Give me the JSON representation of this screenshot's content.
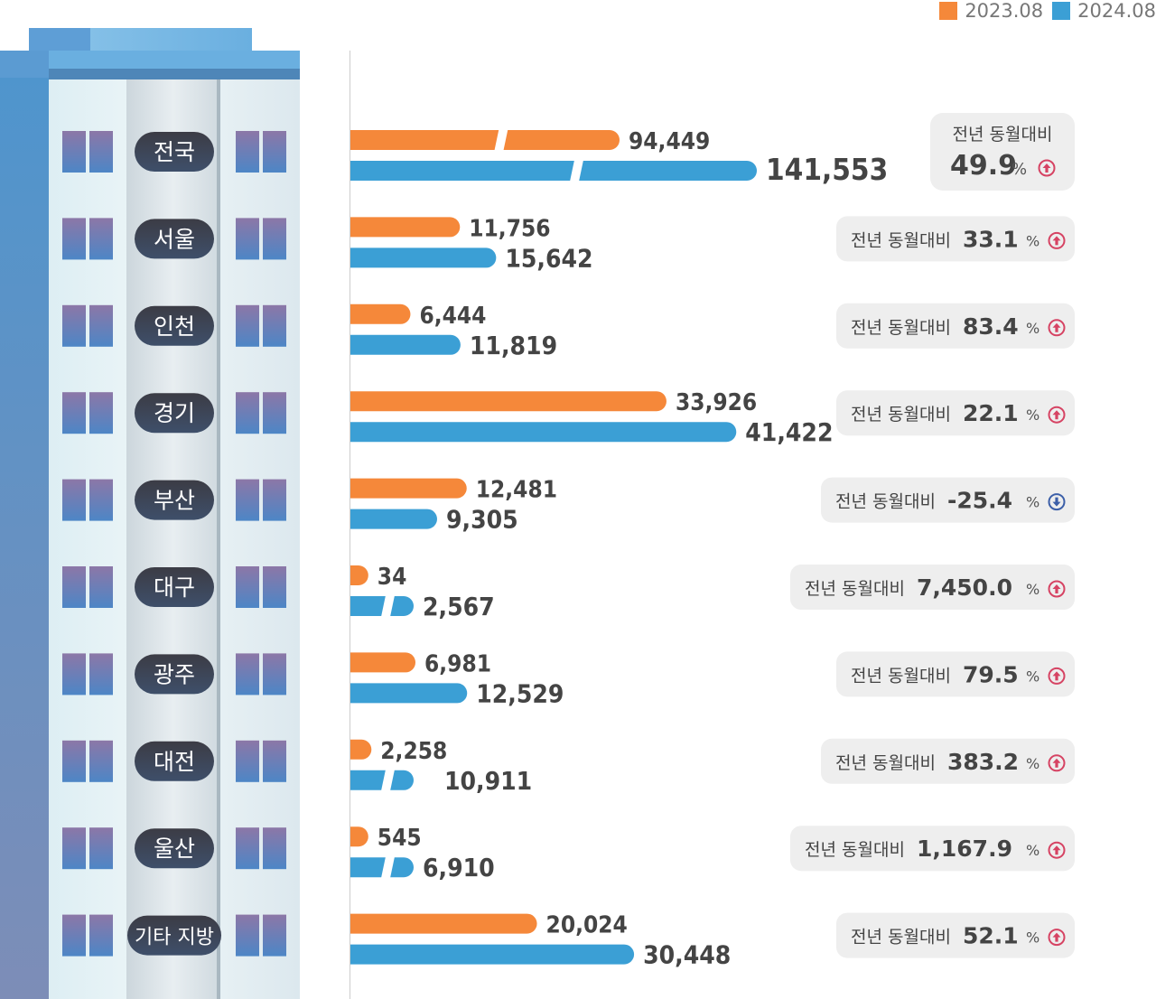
{
  "chart_data": {
    "type": "bar",
    "orientation": "horizontal",
    "legend_position": "top-right",
    "series": [
      {
        "name": "2023.08",
        "color": "#F5883A"
      },
      {
        "name": "2024.08",
        "color": "#3B9FD5"
      }
    ],
    "categories": [
      {
        "label": "전국",
        "v2023": 94449,
        "v2023_label": "94,449",
        "v2024": 141553,
        "v2024_label": "141,553",
        "yoy_prefix": "전년 동월대비",
        "yoy_value": "49.9",
        "yoy_unit": "%",
        "yoy_direction": "up"
      },
      {
        "label": "서울",
        "v2023": 11756,
        "v2023_label": "11,756",
        "v2024": 15642,
        "v2024_label": "15,642",
        "yoy_prefix": "전년 동월대비",
        "yoy_value": "33.1",
        "yoy_unit": "%",
        "yoy_direction": "up"
      },
      {
        "label": "인천",
        "v2023": 6444,
        "v2023_label": "6,444",
        "v2024": 11819,
        "v2024_label": "11,819",
        "yoy_prefix": "전년 동월대비",
        "yoy_value": "83.4",
        "yoy_unit": "%",
        "yoy_direction": "up"
      },
      {
        "label": "경기",
        "v2023": 33926,
        "v2023_label": "33,926",
        "v2024": 41422,
        "v2024_label": "41,422",
        "yoy_prefix": "전년 동월대비",
        "yoy_value": "22.1",
        "yoy_unit": "%",
        "yoy_direction": "up"
      },
      {
        "label": "부산",
        "v2023": 12481,
        "v2023_label": "12,481",
        "v2024": 9305,
        "v2024_label": "9,305",
        "yoy_prefix": "전년 동월대비",
        "yoy_value": "-25.4",
        "yoy_unit": "%",
        "yoy_direction": "down"
      },
      {
        "label": "대구",
        "v2023": 34,
        "v2023_label": "34",
        "v2024": 2567,
        "v2024_label": "2,567",
        "yoy_prefix": "전년 동월대비",
        "yoy_value": "7,450.0",
        "yoy_unit": "%",
        "yoy_direction": "up"
      },
      {
        "label": "광주",
        "v2023": 6981,
        "v2023_label": "6,981",
        "v2024": 12529,
        "v2024_label": "12,529",
        "yoy_prefix": "전년 동월대비",
        "yoy_value": "79.5",
        "yoy_unit": "%",
        "yoy_direction": "up"
      },
      {
        "label": "대전",
        "v2023": 2258,
        "v2023_label": "2,258",
        "v2024": 10911,
        "v2024_label": "10,911",
        "yoy_prefix": "전년 동월대비",
        "yoy_value": "383.2",
        "yoy_unit": "%",
        "yoy_direction": "up"
      },
      {
        "label": "울산",
        "v2023": 545,
        "v2023_label": "545",
        "v2024": 6910,
        "v2024_label": "6,910",
        "yoy_prefix": "전년 동월대비",
        "yoy_value": "1,167.9",
        "yoy_unit": "%",
        "yoy_direction": "up"
      },
      {
        "label": "기타 지방",
        "v2023": 20024,
        "v2023_label": "20,024",
        "v2024": 30448,
        "v2024_label": "30,448",
        "yoy_prefix": "전년 동월대비",
        "yoy_value": "52.1",
        "yoy_unit": "%",
        "yoy_direction": "up"
      }
    ]
  }
}
